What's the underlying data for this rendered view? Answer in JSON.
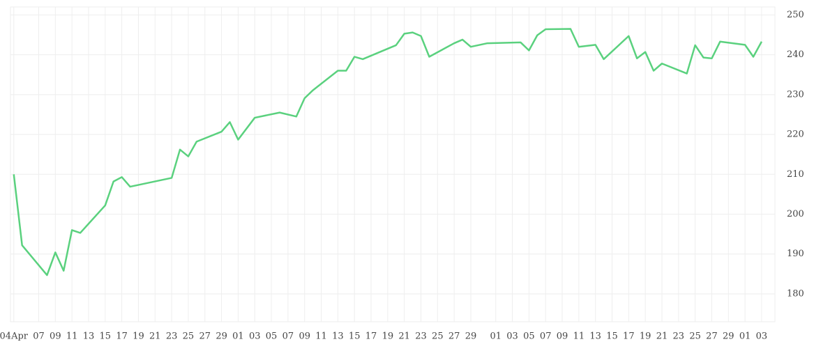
{
  "chart_data": {
    "type": "line",
    "x": [
      0,
      1,
      4,
      5,
      6,
      7,
      8,
      11,
      12,
      13,
      14,
      19,
      20,
      21,
      22,
      25,
      26,
      27,
      29,
      32,
      34,
      35,
      36,
      39,
      40,
      41,
      42,
      46,
      47,
      48,
      49,
      50,
      53,
      54,
      55,
      57,
      61,
      62,
      63,
      64,
      67,
      68,
      70,
      71,
      74,
      75,
      76,
      77,
      78,
      81,
      82,
      83,
      84,
      85,
      88,
      89,
      90
    ],
    "series": [
      {
        "color": "#5ad17e",
        "values": [
          210.0,
          192.2,
          184.7,
          190.4,
          185.8,
          196.0,
          195.3,
          202.2,
          208.2,
          209.3,
          206.9,
          209.1,
          216.2,
          214.5,
          218.2,
          220.7,
          223.1,
          218.7,
          224.2,
          225.5,
          224.5,
          229.1,
          231.1,
          236.0,
          236.0,
          239.5,
          238.9,
          242.4,
          245.3,
          245.6,
          244.7,
          239.5,
          242.9,
          243.8,
          242.0,
          242.9,
          243.1,
          241.1,
          244.9,
          246.4,
          246.5,
          242.0,
          242.5,
          238.9,
          244.7,
          239.1,
          240.7,
          236.0,
          237.8,
          235.3,
          242.4,
          239.3,
          239.1,
          243.3,
          242.5,
          239.5,
          243.3
        ]
      }
    ],
    "xlim": [
      -0.4,
      91.6
    ],
    "xticks": [
      {
        "value": 0,
        "label": "04Apr"
      },
      {
        "value": 3,
        "label": "07"
      },
      {
        "value": 5,
        "label": "09"
      },
      {
        "value": 7,
        "label": "11"
      },
      {
        "value": 9,
        "label": "13"
      },
      {
        "value": 11,
        "label": "15"
      },
      {
        "value": 13,
        "label": "17"
      },
      {
        "value": 15,
        "label": "19"
      },
      {
        "value": 17,
        "label": "21"
      },
      {
        "value": 19,
        "label": "23"
      },
      {
        "value": 21,
        "label": "25"
      },
      {
        "value": 23,
        "label": "27"
      },
      {
        "value": 25,
        "label": "29"
      },
      {
        "value": 27,
        "label": "01"
      },
      {
        "value": 29,
        "label": "03"
      },
      {
        "value": 31,
        "label": "05"
      },
      {
        "value": 33,
        "label": "07"
      },
      {
        "value": 35,
        "label": "09"
      },
      {
        "value": 37,
        "label": "11"
      },
      {
        "value": 39,
        "label": "13"
      },
      {
        "value": 41,
        "label": "15"
      },
      {
        "value": 43,
        "label": "17"
      },
      {
        "value": 45,
        "label": "19"
      },
      {
        "value": 47,
        "label": "21"
      },
      {
        "value": 49,
        "label": "23"
      },
      {
        "value": 51,
        "label": "25"
      },
      {
        "value": 53,
        "label": "27"
      },
      {
        "value": 55,
        "label": "29"
      },
      {
        "value": 58,
        "label": "01"
      },
      {
        "value": 60,
        "label": "03"
      },
      {
        "value": 62,
        "label": "05"
      },
      {
        "value": 64,
        "label": "07"
      },
      {
        "value": 66,
        "label": "09"
      },
      {
        "value": 68,
        "label": "11"
      },
      {
        "value": 70,
        "label": "13"
      },
      {
        "value": 72,
        "label": "15"
      },
      {
        "value": 74,
        "label": "17"
      },
      {
        "value": 76,
        "label": "19"
      },
      {
        "value": 78,
        "label": "21"
      },
      {
        "value": 80,
        "label": "23"
      },
      {
        "value": 82,
        "label": "25"
      },
      {
        "value": 84,
        "label": "27"
      },
      {
        "value": 86,
        "label": "29"
      },
      {
        "value": 88,
        "label": "01"
      },
      {
        "value": 90,
        "label": "03"
      }
    ],
    "ylim": [
      173,
      252
    ],
    "yticks": [
      180,
      190,
      200,
      210,
      220,
      230,
      240,
      250
    ],
    "grid": true
  }
}
